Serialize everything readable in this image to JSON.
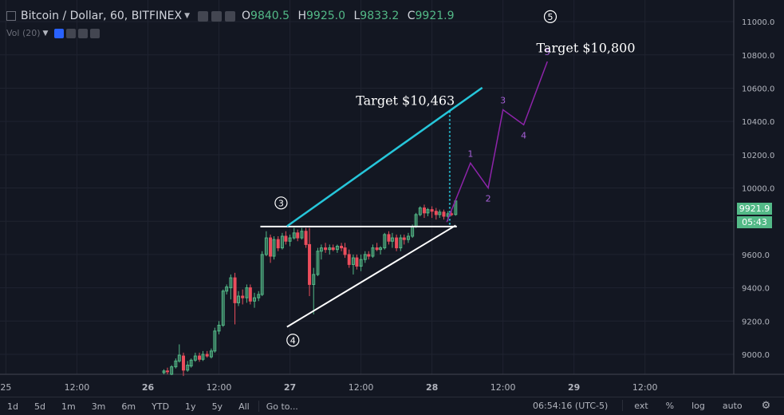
{
  "header": {
    "symbol": "Bitcoin / Dollar, 60, BITFINEX",
    "ohlc": [
      {
        "key": "O",
        "value": "9840.5"
      },
      {
        "key": "H",
        "value": "9925.0"
      },
      {
        "key": "L",
        "value": "9833.2"
      },
      {
        "key": "C",
        "value": "9921.9"
      }
    ],
    "volume_label": "Vol (20)"
  },
  "price_tag": {
    "price": "9921.9",
    "countdown": "05:43"
  },
  "bottom_bar": {
    "ranges": [
      "1d",
      "5d",
      "1m",
      "3m",
      "6m",
      "YTD",
      "1y",
      "5y",
      "All"
    ],
    "goto": "Go to...",
    "clock": "06:54:16 (UTC-5)",
    "toggles": [
      "ext",
      "%",
      "log",
      "auto"
    ]
  },
  "colors": {
    "up": "#53b987",
    "down": "#eb4d5c",
    "trend": "#26c6da",
    "projection": "#8e24aa",
    "background": "#131722",
    "price_tag_bg": "#53b987"
  },
  "chart_data": {
    "type": "candlestick",
    "y_axis": {
      "ticks": [
        9000,
        9200,
        9400,
        9600,
        9800,
        10000,
        10200,
        10400,
        10600,
        10800,
        11000
      ],
      "tick_labels": [
        "9000.0",
        "9200.0",
        "9400.0",
        "9600.0",
        "9800.0",
        "10000.0",
        "10200.0",
        "10400.0",
        "10600.0",
        "10800.0",
        "11000.0"
      ],
      "ylim": [
        8880,
        11130
      ]
    },
    "x_axis": {
      "labels": [
        "25",
        "12:00",
        "26",
        "12:00",
        "27",
        "12:00",
        "28",
        "12:00",
        "29",
        "12:00"
      ],
      "label_hours": [
        0,
        12,
        24,
        36,
        48,
        60,
        72,
        84,
        96,
        108
      ],
      "bold": [
        false,
        false,
        true,
        false,
        true,
        false,
        true,
        false,
        true,
        false
      ],
      "xlim_hours": [
        -1,
        123
      ]
    },
    "candles": [
      {
        "t": 26.7,
        "o": 8890,
        "h": 8910,
        "l": 8880,
        "c": 8900
      },
      {
        "t": 27.3,
        "o": 8900,
        "h": 8920,
        "l": 8880,
        "c": 8895
      },
      {
        "t": 28.0,
        "o": 8880,
        "h": 8935,
        "l": 8875,
        "c": 8925
      },
      {
        "t": 28.7,
        "o": 8925,
        "h": 8975,
        "l": 8915,
        "c": 8960
      },
      {
        "t": 29.3,
        "o": 8960,
        "h": 9060,
        "l": 8950,
        "c": 8995
      },
      {
        "t": 30.0,
        "o": 8990,
        "h": 9010,
        "l": 8870,
        "c": 8905
      },
      {
        "t": 30.7,
        "o": 8905,
        "h": 8960,
        "l": 8895,
        "c": 8935
      },
      {
        "t": 31.3,
        "o": 8930,
        "h": 8975,
        "l": 8920,
        "c": 8965
      },
      {
        "t": 32.0,
        "o": 8965,
        "h": 9010,
        "l": 8955,
        "c": 8990
      },
      {
        "t": 32.7,
        "o": 8990,
        "h": 9010,
        "l": 8955,
        "c": 8970
      },
      {
        "t": 33.3,
        "o": 8970,
        "h": 9020,
        "l": 8960,
        "c": 9000
      },
      {
        "t": 34.0,
        "o": 9000,
        "h": 9020,
        "l": 8980,
        "c": 8990
      },
      {
        "t": 34.7,
        "o": 8985,
        "h": 9035,
        "l": 8975,
        "c": 9020
      },
      {
        "t": 35.3,
        "o": 9020,
        "h": 9160,
        "l": 9010,
        "c": 9140
      },
      {
        "t": 36.0,
        "o": 9140,
        "h": 9200,
        "l": 9120,
        "c": 9175
      },
      {
        "t": 36.7,
        "o": 9175,
        "h": 9390,
        "l": 9165,
        "c": 9380
      },
      {
        "t": 37.3,
        "o": 9380,
        "h": 9420,
        "l": 9360,
        "c": 9405
      },
      {
        "t": 38.0,
        "o": 9400,
        "h": 9480,
        "l": 9330,
        "c": 9460
      },
      {
        "t": 38.7,
        "o": 9460,
        "h": 9490,
        "l": 9180,
        "c": 9310
      },
      {
        "t": 39.3,
        "o": 9310,
        "h": 9380,
        "l": 9290,
        "c": 9350
      },
      {
        "t": 40.0,
        "o": 9350,
        "h": 9390,
        "l": 9300,
        "c": 9340
      },
      {
        "t": 40.7,
        "o": 9340,
        "h": 9420,
        "l": 9310,
        "c": 9400
      },
      {
        "t": 41.3,
        "o": 9400,
        "h": 9420,
        "l": 9300,
        "c": 9320
      },
      {
        "t": 42.0,
        "o": 9320,
        "h": 9370,
        "l": 9280,
        "c": 9340
      },
      {
        "t": 42.7,
        "o": 9340,
        "h": 9380,
        "l": 9320,
        "c": 9360
      },
      {
        "t": 43.3,
        "o": 9360,
        "h": 9620,
        "l": 9350,
        "c": 9600
      },
      {
        "t": 44.0,
        "o": 9600,
        "h": 9740,
        "l": 9590,
        "c": 9700
      },
      {
        "t": 44.7,
        "o": 9700,
        "h": 9720,
        "l": 9550,
        "c": 9590
      },
      {
        "t": 45.3,
        "o": 9590,
        "h": 9710,
        "l": 9570,
        "c": 9690
      },
      {
        "t": 46.0,
        "o": 9690,
        "h": 9710,
        "l": 9620,
        "c": 9640
      },
      {
        "t": 46.7,
        "o": 9640,
        "h": 9730,
        "l": 9630,
        "c": 9710
      },
      {
        "t": 47.3,
        "o": 9710,
        "h": 9740,
        "l": 9660,
        "c": 9680
      },
      {
        "t": 48.0,
        "o": 9680,
        "h": 9720,
        "l": 9650,
        "c": 9700
      },
      {
        "t": 48.7,
        "o": 9700,
        "h": 9760,
        "l": 9690,
        "c": 9730
      },
      {
        "t": 49.3,
        "o": 9730,
        "h": 9750,
        "l": 9680,
        "c": 9700
      },
      {
        "t": 50.0,
        "o": 9700,
        "h": 9760,
        "l": 9690,
        "c": 9740
      },
      {
        "t": 50.7,
        "o": 9740,
        "h": 9760,
        "l": 9640,
        "c": 9660
      },
      {
        "t": 51.3,
        "o": 9660,
        "h": 9760,
        "l": 9350,
        "c": 9420
      },
      {
        "t": 52.0,
        "o": 9420,
        "h": 9520,
        "l": 9240,
        "c": 9480
      },
      {
        "t": 52.7,
        "o": 9480,
        "h": 9640,
        "l": 9470,
        "c": 9620
      },
      {
        "t": 53.3,
        "o": 9620,
        "h": 9660,
        "l": 9570,
        "c": 9640
      },
      {
        "t": 54.0,
        "o": 9640,
        "h": 9670,
        "l": 9610,
        "c": 9630
      },
      {
        "t": 54.7,
        "o": 9630,
        "h": 9660,
        "l": 9600,
        "c": 9640
      },
      {
        "t": 55.3,
        "o": 9640,
        "h": 9660,
        "l": 9620,
        "c": 9630
      },
      {
        "t": 56.0,
        "o": 9630,
        "h": 9660,
        "l": 9610,
        "c": 9650
      },
      {
        "t": 56.7,
        "o": 9650,
        "h": 9670,
        "l": 9620,
        "c": 9640
      },
      {
        "t": 57.3,
        "o": 9640,
        "h": 9670,
        "l": 9580,
        "c": 9600
      },
      {
        "t": 58.0,
        "o": 9600,
        "h": 9630,
        "l": 9520,
        "c": 9540
      },
      {
        "t": 58.7,
        "o": 9540,
        "h": 9600,
        "l": 9480,
        "c": 9580
      },
      {
        "t": 59.3,
        "o": 9580,
        "h": 9600,
        "l": 9510,
        "c": 9530
      },
      {
        "t": 60.0,
        "o": 9530,
        "h": 9600,
        "l": 9500,
        "c": 9570
      },
      {
        "t": 60.7,
        "o": 9570,
        "h": 9620,
        "l": 9550,
        "c": 9600
      },
      {
        "t": 61.3,
        "o": 9600,
        "h": 9620,
        "l": 9570,
        "c": 9590
      },
      {
        "t": 62.0,
        "o": 9590,
        "h": 9660,
        "l": 9580,
        "c": 9640
      },
      {
        "t": 62.7,
        "o": 9640,
        "h": 9670,
        "l": 9620,
        "c": 9630
      },
      {
        "t": 63.3,
        "o": 9630,
        "h": 9650,
        "l": 9600,
        "c": 9640
      },
      {
        "t": 64.0,
        "o": 9640,
        "h": 9730,
        "l": 9630,
        "c": 9720
      },
      {
        "t": 64.7,
        "o": 9720,
        "h": 9740,
        "l": 9660,
        "c": 9680
      },
      {
        "t": 65.3,
        "o": 9680,
        "h": 9730,
        "l": 9640,
        "c": 9700
      },
      {
        "t": 66.0,
        "o": 9700,
        "h": 9720,
        "l": 9620,
        "c": 9640
      },
      {
        "t": 66.7,
        "o": 9640,
        "h": 9720,
        "l": 9620,
        "c": 9700
      },
      {
        "t": 67.3,
        "o": 9700,
        "h": 9720,
        "l": 9660,
        "c": 9690
      },
      {
        "t": 68.0,
        "o": 9690,
        "h": 9730,
        "l": 9670,
        "c": 9710
      },
      {
        "t": 68.7,
        "o": 9710,
        "h": 9780,
        "l": 9700,
        "c": 9770
      },
      {
        "t": 69.3,
        "o": 9770,
        "h": 9850,
        "l": 9760,
        "c": 9840
      },
      {
        "t": 70.0,
        "o": 9840,
        "h": 9890,
        "l": 9830,
        "c": 9880
      },
      {
        "t": 70.7,
        "o": 9880,
        "h": 9900,
        "l": 9820,
        "c": 9850
      },
      {
        "t": 71.3,
        "o": 9850,
        "h": 9880,
        "l": 9830,
        "c": 9870
      },
      {
        "t": 72.0,
        "o": 9870,
        "h": 9890,
        "l": 9820,
        "c": 9860
      },
      {
        "t": 72.7,
        "o": 9860,
        "h": 9880,
        "l": 9810,
        "c": 9840
      },
      {
        "t": 73.3,
        "o": 9840,
        "h": 9870,
        "l": 9820,
        "c": 9855
      },
      {
        "t": 74.0,
        "o": 9855,
        "h": 9870,
        "l": 9810,
        "c": 9830
      },
      {
        "t": 74.7,
        "o": 9830,
        "h": 9860,
        "l": 9800,
        "c": 9845
      },
      {
        "t": 75.3,
        "o": 9845,
        "h": 9875,
        "l": 9830,
        "c": 9840
      },
      {
        "t": 76.0,
        "o": 9840.5,
        "h": 9925,
        "l": 9833.2,
        "c": 9921.9
      }
    ],
    "drawings": {
      "resistance_line": {
        "x1": 43.0,
        "y1": 9768,
        "x2": 76.2,
        "y2": 9768,
        "color": "white"
      },
      "support_line": {
        "x1": 47.5,
        "y1": 9165,
        "x2": 76.0,
        "y2": 9775,
        "color": "white"
      },
      "upper_channel": {
        "x1": 47.5,
        "y1": 9770,
        "x2": 80.5,
        "y2": 10603,
        "color": "#26c6da"
      },
      "target_projection": {
        "x": 75.0,
        "y_from": 9780,
        "y_to": 10463
      },
      "wave_projection": [
        {
          "t": 74.5,
          "p": 9795,
          "label": ""
        },
        {
          "t": 78.5,
          "p": 10150,
          "label": "1"
        },
        {
          "t": 81.5,
          "p": 10000,
          "label": "2"
        },
        {
          "t": 84.0,
          "p": 10470,
          "label": "3"
        },
        {
          "t": 87.5,
          "p": 10380,
          "label": "4"
        },
        {
          "t": 91.5,
          "p": 10760,
          "label": "5"
        }
      ],
      "wave_circles": [
        {
          "label": "3",
          "t": 46.5,
          "p": 9910
        },
        {
          "label": "4",
          "t": 48.5,
          "p": 9085
        },
        {
          "label": "5",
          "t": 92.0,
          "p": 11030
        }
      ],
      "text_labels": [
        {
          "text": "Target $10,463",
          "t": 67.5,
          "p": 10500
        },
        {
          "text": "Target $10,800",
          "t": 98.0,
          "p": 10815
        }
      ]
    }
  }
}
